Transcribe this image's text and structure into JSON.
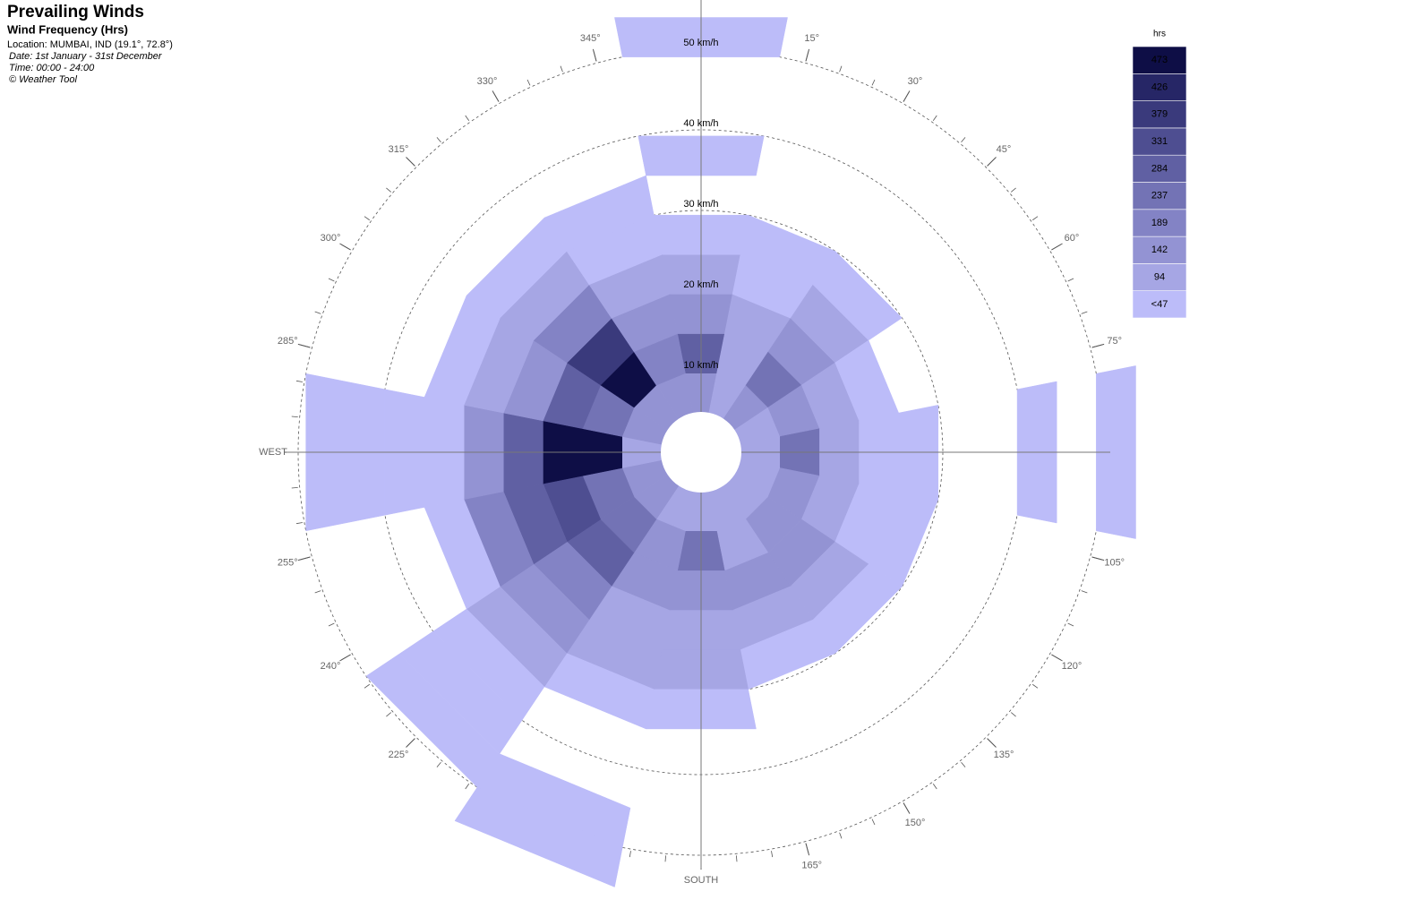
{
  "chart_data": {
    "type": "windrose",
    "title": "Prevailing Winds",
    "subtitle": "Wind Frequency (Hrs)",
    "info": [
      "Location: MUMBAI, IND (19.1°, 72.8°)",
      "Date: 1st January - 31st December",
      "Time: 00:00 - 24:00",
      "© Weather Tool"
    ],
    "directions": [
      0,
      22.5,
      45,
      67.5,
      90,
      112.5,
      135,
      157.5,
      180,
      202.5,
      225,
      247.5,
      270,
      292.5,
      315,
      337.5
    ],
    "speed_bins": [
      5,
      10,
      15,
      20,
      25,
      30,
      35,
      40,
      45,
      50,
      55
    ],
    "values": [
      [
        142,
        284,
        142,
        94,
        30,
        null,
        30,
        null,
        null,
        30
      ],
      [
        94,
        94,
        94,
        30,
        30,
        null,
        null,
        null,
        null,
        null
      ],
      [
        142,
        237,
        142,
        94,
        30,
        null,
        null,
        null,
        null,
        null
      ],
      [
        94,
        142,
        94,
        30,
        null,
        null,
        null,
        null,
        null,
        null
      ],
      [
        94,
        237,
        94,
        30,
        30,
        null,
        null,
        30,
        null,
        30
      ],
      [
        94,
        142,
        94,
        30,
        30,
        null,
        null,
        null,
        null,
        null
      ],
      [
        94,
        142,
        142,
        94,
        30,
        null,
        null,
        null,
        null,
        null
      ],
      [
        94,
        94,
        142,
        94,
        30,
        null,
        null,
        null,
        null,
        null
      ],
      [
        94,
        237,
        142,
        94,
        94,
        30,
        null,
        null,
        null,
        null
      ],
      [
        94,
        142,
        142,
        94,
        94,
        30,
        null,
        null,
        30,
        30
      ],
      [
        142,
        237,
        284,
        189,
        142,
        94,
        30,
        30,
        30,
        null
      ],
      [
        142,
        237,
        331,
        284,
        189,
        30,
        null,
        null,
        null,
        null
      ],
      [
        94,
        473,
        473,
        284,
        142,
        30,
        30,
        30,
        30,
        null
      ],
      [
        142,
        237,
        284,
        142,
        94,
        30,
        null,
        null,
        null,
        null
      ],
      [
        142,
        473,
        379,
        189,
        94,
        30,
        null,
        null,
        null,
        null
      ],
      [
        142,
        189,
        142,
        94,
        30,
        30,
        null,
        null,
        null,
        null
      ]
    ],
    "rlim": [
      0,
      55
    ],
    "rticks": [
      {
        "value": 10,
        "label": "10 km/h"
      },
      {
        "value": 20,
        "label": "20 km/h"
      },
      {
        "value": 30,
        "label": "30 km/h"
      },
      {
        "value": 40,
        "label": "40 km/h"
      },
      {
        "value": 50,
        "label": "50 km/h"
      }
    ],
    "angle_ticks": [
      {
        "value": 15,
        "label": "15°"
      },
      {
        "value": 30,
        "label": "30°"
      },
      {
        "value": 45,
        "label": "45°"
      },
      {
        "value": 60,
        "label": "60°"
      },
      {
        "value": 75,
        "label": "75°"
      },
      {
        "value": 105,
        "label": "105°"
      },
      {
        "value": 120,
        "label": "120°"
      },
      {
        "value": 135,
        "label": "135°"
      },
      {
        "value": 150,
        "label": "150°"
      },
      {
        "value": 165,
        "label": "165°"
      },
      {
        "value": 180,
        "label": "SOUTH"
      },
      {
        "value": 225,
        "label": "225°"
      },
      {
        "value": 240,
        "label": "240°"
      },
      {
        "value": 255,
        "label": "255°"
      },
      {
        "value": 270,
        "label": "WEST"
      },
      {
        "value": 285,
        "label": "285°"
      },
      {
        "value": 300,
        "label": "300°"
      },
      {
        "value": 315,
        "label": "315°"
      },
      {
        "value": 330,
        "label": "330°"
      },
      {
        "value": 345,
        "label": "345°"
      }
    ],
    "legend": {
      "title": "hrs",
      "levels": [
        {
          "value": 47,
          "label": "<47"
        },
        94,
        142,
        189,
        237,
        284,
        331,
        379,
        426,
        473
      ],
      "colors": [
        "#bcbcf9",
        "#a6a6e4",
        "#9393d3",
        "#8383c5",
        "#7373b5",
        "#6060a3",
        "#4e4e91",
        "#3a3a7c",
        "#262666",
        "#0e0e46"
      ]
    }
  }
}
